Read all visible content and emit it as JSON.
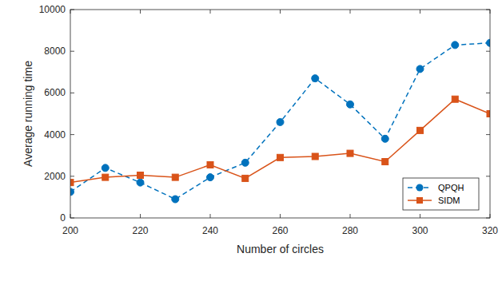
{
  "chart_data": {
    "type": "line",
    "x_label": "Number of circles",
    "y_label": "Average running time",
    "x": [
      200,
      210,
      220,
      230,
      240,
      250,
      260,
      270,
      280,
      290,
      300,
      310,
      320
    ],
    "series": [
      {
        "name": "QPQH",
        "color": "#0072bd",
        "marker": "circle",
        "line_style": "dashed",
        "values": [
          1250,
          2400,
          1700,
          900,
          1950,
          2650,
          4600,
          6700,
          5450,
          3800,
          7150,
          8300,
          8400
        ]
      },
      {
        "name": "SIDM",
        "color": "#d95319",
        "marker": "square",
        "line_style": "solid",
        "values": [
          1700,
          1950,
          2050,
          1950,
          2550,
          1900,
          2900,
          2950,
          3100,
          2700,
          4200,
          5700,
          5000
        ]
      }
    ],
    "xlim": [
      200,
      320
    ],
    "xticks": [
      200,
      220,
      240,
      260,
      280,
      300,
      320
    ],
    "ylim": [
      0,
      10000
    ],
    "yticks": [
      0,
      2000,
      4000,
      6000,
      8000,
      10000
    ],
    "grid": false,
    "legend": "lower right"
  }
}
